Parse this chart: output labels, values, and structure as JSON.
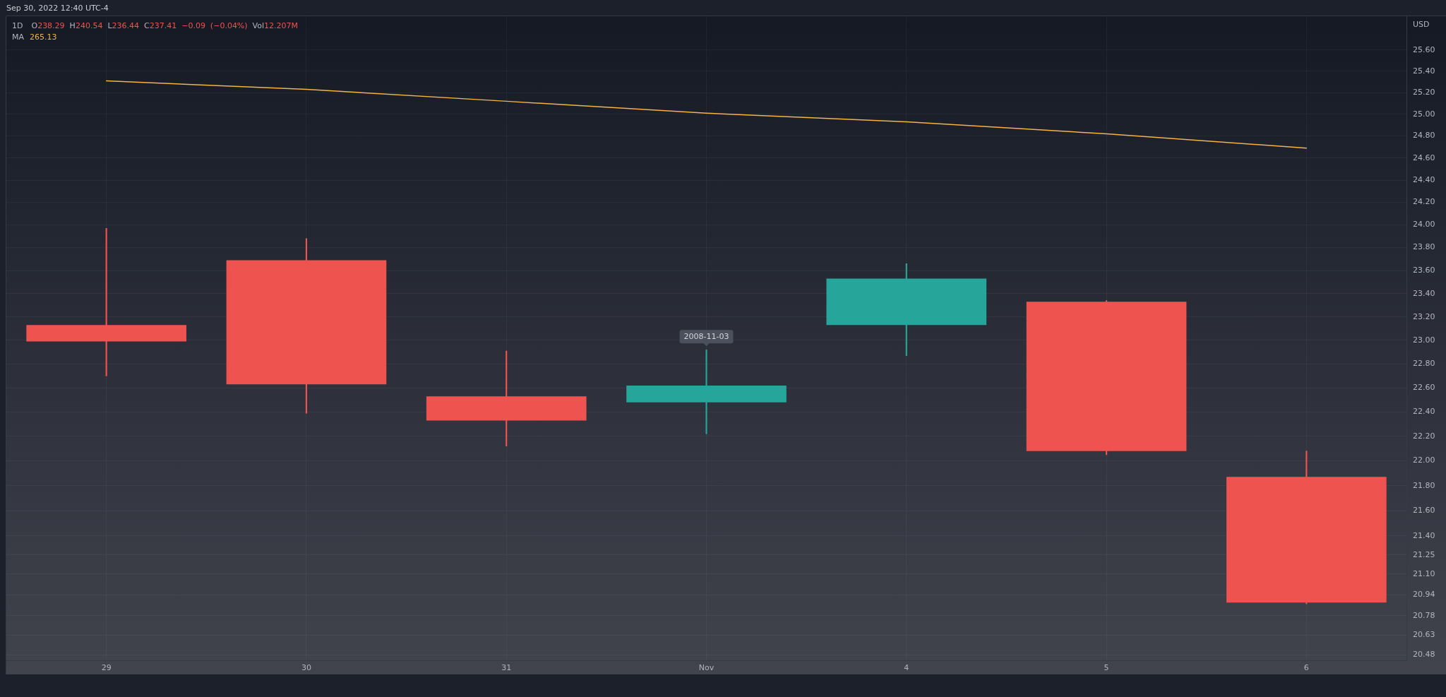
{
  "chart_data": {
    "type": "candlestick",
    "title": "1D",
    "ylabel": "USD",
    "categories": [
      "29",
      "30",
      "31",
      "Nov",
      "4",
      "5",
      "6"
    ],
    "ohlc": [
      [
        23.13,
        23.97,
        22.7,
        22.99
      ],
      [
        23.69,
        23.88,
        22.39,
        22.63
      ],
      [
        22.53,
        22.91,
        22.12,
        22.33
      ],
      [
        22.48,
        22.92,
        22.22,
        22.62
      ],
      [
        23.13,
        23.66,
        22.87,
        23.53
      ],
      [
        23.33,
        23.34,
        22.05,
        22.08
      ],
      [
        21.87,
        22.08,
        20.87,
        20.88
      ]
    ],
    "colors": [
      "#ef5350",
      "#ef5350",
      "#ef5350",
      "#26a69a",
      "#26a69a",
      "#ef5350",
      "#ef5350"
    ],
    "series": [
      {
        "name": "MA",
        "type": "line",
        "color": "#f5b342",
        "values": [
          25.31,
          25.23,
          25.12,
          25.01,
          24.93,
          24.82,
          24.69
        ]
      }
    ],
    "ylim": [
      20.44,
      25.92
    ],
    "yticks": [
      {
        "value": 25.6,
        "label": "25.60"
      },
      {
        "value": 25.4,
        "label": "25.40"
      },
      {
        "value": 25.2,
        "label": "25.20"
      },
      {
        "value": 25.0,
        "label": "25.00"
      },
      {
        "value": 24.8,
        "label": "24.80"
      },
      {
        "value": 24.6,
        "label": "24.60"
      },
      {
        "value": 24.4,
        "label": "24.40"
      },
      {
        "value": 24.2,
        "label": "24.20"
      },
      {
        "value": 24.0,
        "label": "24.00"
      },
      {
        "value": 23.8,
        "label": "23.80"
      },
      {
        "value": 23.6,
        "label": "23.60"
      },
      {
        "value": 23.4,
        "label": "23.40"
      },
      {
        "value": 23.2,
        "label": "23.20"
      },
      {
        "value": 23.0,
        "label": "23.00"
      },
      {
        "value": 22.8,
        "label": "22.80"
      },
      {
        "value": 22.6,
        "label": "22.60"
      },
      {
        "value": 22.4,
        "label": "22.40"
      },
      {
        "value": 22.2,
        "label": "22.20"
      },
      {
        "value": 22.0,
        "label": "22.00"
      },
      {
        "value": 21.8,
        "label": "21.80"
      },
      {
        "value": 21.6,
        "label": "21.60"
      },
      {
        "value": 21.4,
        "label": "21.40"
      },
      {
        "value": 21.25,
        "label": "21.25"
      },
      {
        "value": 21.1,
        "label": "21.10"
      },
      {
        "value": 20.94,
        "label": "20.94"
      },
      {
        "value": 20.78,
        "label": "20.78"
      },
      {
        "value": 20.63,
        "label": "20.63"
      },
      {
        "value": 20.48,
        "label": "20.48"
      }
    ],
    "log": true,
    "grid": true,
    "legend": "top left",
    "annotations": [
      "Sep 30, 2022 12:40 UTC-4",
      "O238.29 H240.54 L236.44 C237.41 −0.09 (−0.04%) Vol12.207M",
      "265.13",
      {
        "text": "2008-11-03",
        "x": "Nov",
        "y": 22.92
      }
    ]
  }
}
